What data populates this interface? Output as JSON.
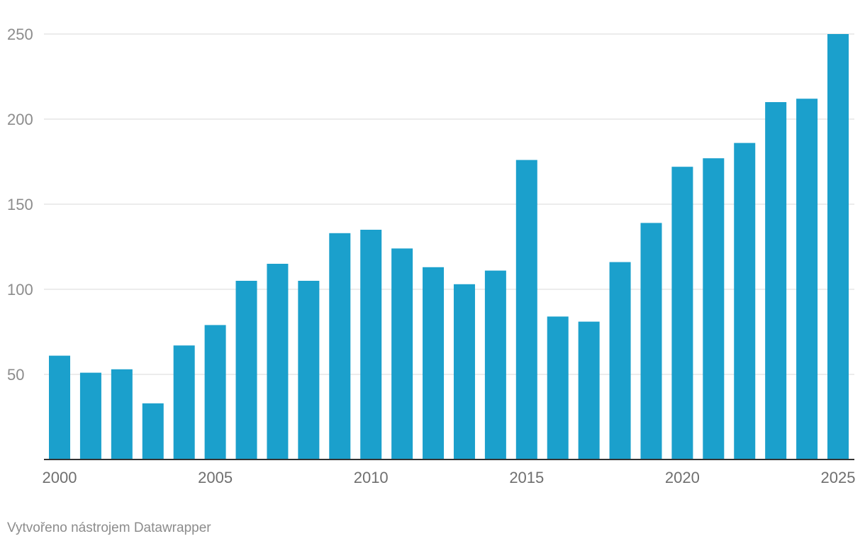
{
  "chart_data": {
    "type": "bar",
    "categories": [
      "2000",
      "2001",
      "2002",
      "2003",
      "2004",
      "2005",
      "2006",
      "2007",
      "2008",
      "2009",
      "2010",
      "2011",
      "2012",
      "2013",
      "2014",
      "2015",
      "2016",
      "2017",
      "2018",
      "2019",
      "2020",
      "2021",
      "2022",
      "2023",
      "2024",
      "2025"
    ],
    "values": [
      61,
      51,
      53,
      33,
      67,
      79,
      105,
      115,
      105,
      133,
      135,
      124,
      113,
      103,
      111,
      176,
      84,
      81,
      116,
      139,
      172,
      177,
      186,
      210,
      212,
      250
    ],
    "x_tick_labels": [
      "2000",
      "2005",
      "2010",
      "2015",
      "2020",
      "2025"
    ],
    "y_tick_labels": [
      "50",
      "100",
      "150",
      "200",
      "250"
    ],
    "y_ticks": [
      50,
      100,
      150,
      200,
      250
    ],
    "ylim": [
      0,
      250
    ],
    "title": "",
    "xlabel": "",
    "ylabel": "",
    "grid": true,
    "bar_color": "#1ba0cc"
  },
  "footer": {
    "credit": "Vytvořeno nástrojem Datawrapper"
  }
}
